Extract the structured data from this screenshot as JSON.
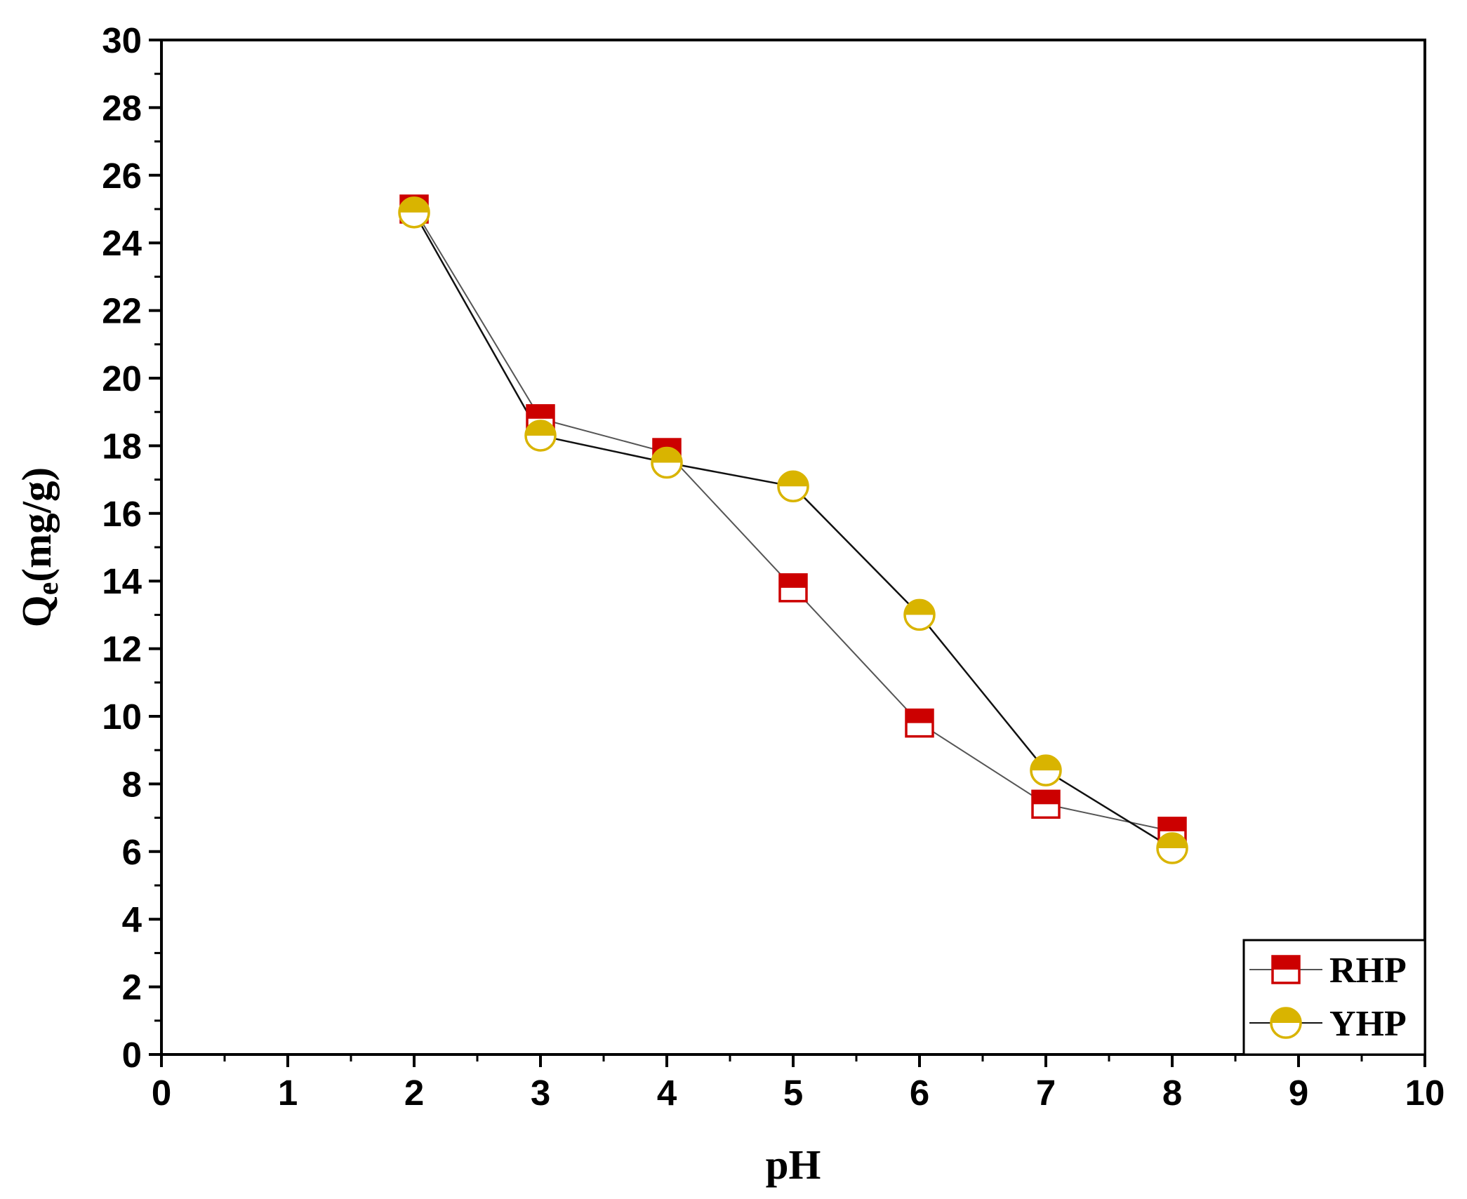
{
  "chart_data": {
    "type": "line",
    "xlabel": "pH",
    "ylabel": {
      "main": "Q",
      "sub": "e",
      "suffix": "(mg/g)"
    },
    "xlim": [
      0,
      10
    ],
    "ylim": [
      0,
      30
    ],
    "xticks": [
      0,
      1,
      2,
      3,
      4,
      5,
      6,
      7,
      8,
      9,
      10
    ],
    "yticks": [
      0,
      2,
      4,
      6,
      8,
      10,
      12,
      14,
      16,
      18,
      20,
      22,
      24,
      26,
      28,
      30
    ],
    "grid": false,
    "legend_position": "bottom-right",
    "series": [
      {
        "name": "RHP",
        "marker": "half-filled-square",
        "color": "#cc0000",
        "line_color": "#555555",
        "x": [
          2,
          3,
          4,
          5,
          6,
          7,
          8
        ],
        "y": [
          25.0,
          18.8,
          17.8,
          13.8,
          9.8,
          7.4,
          6.6
        ]
      },
      {
        "name": "YHP",
        "marker": "half-filled-circle",
        "color": "#d9b400",
        "line_color": "#111111",
        "x": [
          2,
          3,
          4,
          5,
          6,
          7,
          8
        ],
        "y": [
          24.9,
          18.3,
          17.5,
          16.8,
          13.0,
          8.4,
          6.1
        ]
      }
    ]
  }
}
